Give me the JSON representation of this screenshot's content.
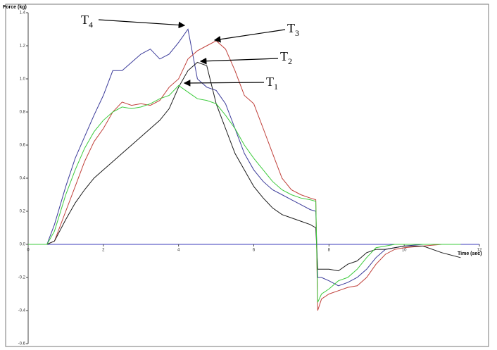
{
  "chart_data": {
    "type": "line",
    "x_label": "Time (sec)",
    "y_label": "Force (kg)",
    "x": [
      0,
      0.5,
      0.7,
      1,
      1.25,
      1.5,
      1.75,
      2,
      2.25,
      2.5,
      2.75,
      3,
      3.25,
      3.5,
      3.75,
      4,
      4.25,
      4.5,
      4.75,
      5,
      5.25,
      5.5,
      5.75,
      6,
      6.25,
      6.5,
      6.75,
      7,
      7.25,
      7.5,
      7.65,
      7.7,
      7.8,
      8,
      8.25,
      8.5,
      8.75,
      9,
      9.25,
      9.5,
      9.75,
      10,
      10.5,
      11,
      11.5
    ],
    "series": [
      {
        "name": "T4",
        "color": "#3b3b9a",
        "values": [
          0,
          0,
          0.12,
          0.35,
          0.52,
          0.65,
          0.78,
          0.9,
          1.05,
          1.05,
          1.1,
          1.15,
          1.18,
          1.12,
          1.15,
          1.22,
          1.3,
          1.0,
          0.95,
          0.93,
          0.85,
          0.7,
          0.55,
          0.45,
          0.38,
          0.33,
          0.3,
          0.27,
          0.24,
          0.21,
          0.2,
          -0.2,
          -0.2,
          -0.22,
          -0.25,
          -0.23,
          -0.2,
          -0.15,
          -0.08,
          -0.03,
          -0.02,
          -0.01,
          0,
          0,
          0
        ]
      },
      {
        "name": "T3",
        "color": "#c0403a",
        "values": [
          0,
          0,
          0.02,
          0.2,
          0.35,
          0.5,
          0.62,
          0.7,
          0.8,
          0.86,
          0.84,
          0.85,
          0.84,
          0.87,
          0.95,
          1.0,
          1.12,
          1.17,
          1.2,
          1.23,
          1.18,
          1.05,
          0.9,
          0.85,
          0.7,
          0.55,
          0.4,
          0.33,
          0.3,
          0.28,
          0.27,
          -0.4,
          -0.33,
          -0.3,
          -0.28,
          -0.26,
          -0.25,
          -0.2,
          -0.12,
          -0.06,
          -0.03,
          -0.02,
          -0.01,
          0,
          0
        ]
      },
      {
        "name": "T2",
        "color": "#1a1a1a",
        "values": [
          0,
          0,
          0.02,
          0.15,
          0.25,
          0.33,
          0.4,
          0.45,
          0.5,
          0.55,
          0.6,
          0.65,
          0.7,
          0.75,
          0.82,
          0.95,
          1.05,
          1.1,
          1.08,
          0.85,
          0.7,
          0.55,
          0.45,
          0.35,
          0.28,
          0.22,
          0.18,
          0.16,
          0.14,
          0.12,
          0.1,
          -0.15,
          -0.15,
          -0.15,
          -0.16,
          -0.12,
          -0.1,
          -0.05,
          -0.03,
          -0.03,
          -0.02,
          -0.01,
          -0.01,
          -0.05,
          -0.08
        ]
      },
      {
        "name": "T1",
        "color": "#3ccb3c",
        "values": [
          0,
          0,
          0.08,
          0.3,
          0.45,
          0.58,
          0.68,
          0.75,
          0.8,
          0.83,
          0.82,
          0.83,
          0.85,
          0.88,
          0.9,
          0.96,
          0.92,
          0.88,
          0.87,
          0.85,
          0.78,
          0.7,
          0.6,
          0.52,
          0.45,
          0.38,
          0.33,
          0.3,
          0.28,
          0.27,
          0.26,
          -0.35,
          -0.3,
          -0.27,
          -0.22,
          -0.2,
          -0.15,
          -0.08,
          -0.02,
          -0.01,
          0,
          0,
          0,
          0,
          0
        ]
      }
    ],
    "annotations": [
      {
        "text": "T",
        "sub": "4"
      },
      {
        "text": "T",
        "sub": "3"
      },
      {
        "text": "T",
        "sub": "2"
      },
      {
        "text": "T",
        "sub": "1"
      }
    ],
    "xlim": [
      0,
      12
    ],
    "xticks": [
      0,
      2,
      4,
      6,
      8,
      10,
      12
    ],
    "ylim": [
      -0.6,
      1.4
    ],
    "yticks": [
      -0.6,
      -0.4,
      -0.2,
      {
        "value": 0,
        "label": "0.0"
      },
      0.2,
      0.4,
      0.6,
      0.8,
      {
        "value": 1,
        "label": "1.0"
      },
      1.2,
      1.4
    ]
  }
}
